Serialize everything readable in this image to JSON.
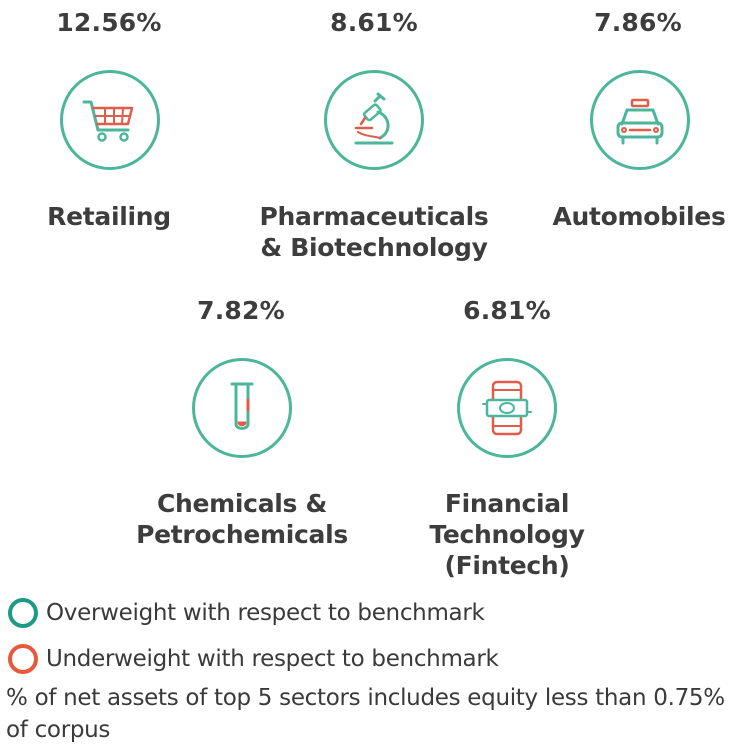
{
  "sectors": [
    {
      "pct": "12.56%",
      "label_lines": [
        "Retailing"
      ],
      "icon": "shopping-cart-icon"
    },
    {
      "pct": "8.61%",
      "label_lines": [
        "Pharmaceuticals",
        "& Biotechnology"
      ],
      "icon": "microscope-icon"
    },
    {
      "pct": "7.86%",
      "label_lines": [
        "Automobiles"
      ],
      "icon": "car-icon"
    },
    {
      "pct": "7.82%",
      "label_lines": [
        "Chemicals &",
        "Petrochemicals"
      ],
      "icon": "test-tube-icon"
    },
    {
      "pct": "6.81%",
      "label_lines": [
        "Financial",
        "Technology",
        "(Fintech)"
      ],
      "icon": "mobile-payment-icon"
    }
  ],
  "legend": {
    "overweight": {
      "text": "Overweight with respect to benchmark",
      "color": "#1d9a85"
    },
    "underweight": {
      "text": "Underweight with respect to benchmark",
      "color": "#e8583a"
    }
  },
  "note": "% of net assets of top 5 sectors includes equity less than 0.75% of corpus",
  "colors": {
    "icon_green": "#4cb69a",
    "icon_red": "#e05d4a"
  }
}
